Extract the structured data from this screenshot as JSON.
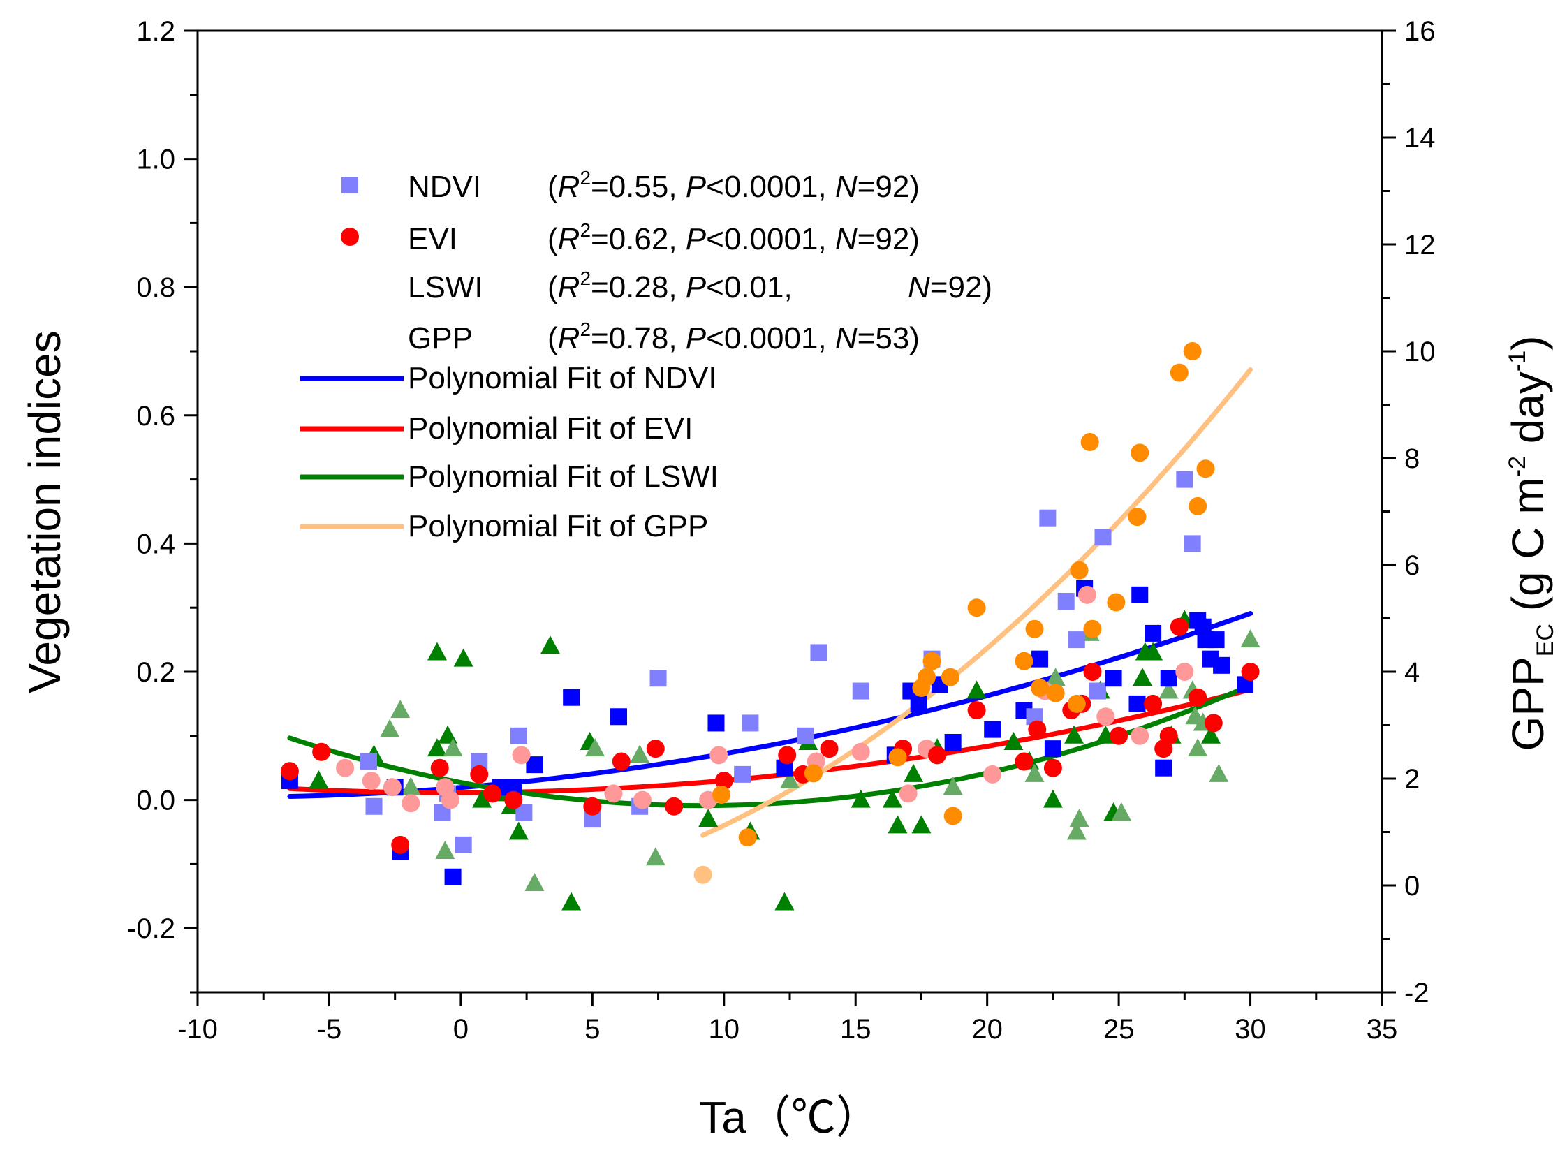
{
  "chart_data": {
    "type": "scatter",
    "title": "",
    "xlabel": "Ta（℃）",
    "ylabel_left": "Vegetation indices",
    "ylabel_right": {
      "main": "GPP",
      "sub": "EC",
      "units_open": " (g C m",
      "exp1": "-2",
      "units_mid": " day",
      "exp2": "-1",
      "units_close": ")"
    },
    "xlim": [
      -10,
      35
    ],
    "ylim_left": [
      -0.3,
      1.2
    ],
    "ylim_right": [
      -2,
      16
    ],
    "x_ticks": [
      "-10",
      "-5",
      "0",
      "5",
      "10",
      "15",
      "20",
      "25",
      "30",
      "35"
    ],
    "y_left_ticks": [
      "-0.2",
      "0.0",
      "0.2",
      "0.4",
      "0.6",
      "0.8",
      "1.0",
      "1.2"
    ],
    "y_right_ticks": [
      "-2",
      "0",
      "2",
      "4",
      "6",
      "8",
      "10",
      "12",
      "14",
      "16"
    ],
    "grid": false,
    "legend_position": "upper-left",
    "stats": [
      {
        "label": "NDVI",
        "r2": "=0.55, ",
        "p": "<0.0001, ",
        "n": "=92)"
      },
      {
        "label": "EVI",
        "r2": "=0.62, ",
        "p": "<0.0001, ",
        "n": "=92)"
      },
      {
        "label": "LSWI",
        "r2": "=0.28, ",
        "p": "<0.01, ",
        "n": "=92)"
      },
      {
        "label": "GPP",
        "r2": "=0.78, ",
        "p": "<0.0001, ",
        "n": "=53)"
      }
    ],
    "fit_lines": [
      {
        "name": "Polynomial Fit of NDVI",
        "color": "#0000ff",
        "axis": "left",
        "x_range": [
          -6.5,
          30
        ],
        "coef": [
          0.0195,
          0.00338,
          0.000189
        ]
      },
      {
        "name": "Polynomial Fit of EVI",
        "color": "#ff0000",
        "axis": "left",
        "x_range": [
          -6.5,
          30
        ],
        "coef": [
          0.0114,
          0.000143,
          0.000174
        ]
      },
      {
        "name": "Polynomial Fit of LSWI",
        "color": "#008000",
        "axis": "left",
        "x_range": [
          -6.5,
          30
        ],
        "coef": [
          0.0273,
          -0.00788,
          0.000431
        ]
      },
      {
        "name": "Polynomial Fit of GPP",
        "color": "#ffc080",
        "axis": "right",
        "x_range": [
          9.2,
          30
        ],
        "coef": [
          -0.3,
          0.0477,
          0.00947
        ]
      }
    ],
    "series": [
      {
        "name": "NDVI",
        "marker": "square",
        "color": "#0000ff",
        "fade_color": "#8080ff",
        "axis": "left",
        "points": [
          [
            -6.5,
            0.03,
            0
          ],
          [
            -3.5,
            0.06,
            1
          ],
          [
            -3.3,
            -0.01,
            1
          ],
          [
            -2.5,
            0.02,
            0
          ],
          [
            -2.3,
            -0.08,
            0
          ],
          [
            -0.7,
            -0.02,
            1
          ],
          [
            -0.5,
            0.01,
            1
          ],
          [
            -0.3,
            -0.12,
            0
          ],
          [
            0.1,
            -0.07,
            1
          ],
          [
            0.7,
            0.06,
            1
          ],
          [
            1.5,
            0.02,
            0
          ],
          [
            2.0,
            0.02,
            0
          ],
          [
            2.2,
            0.1,
            1
          ],
          [
            2.4,
            -0.02,
            1
          ],
          [
            2.8,
            0.055,
            0
          ],
          [
            4.2,
            0.16,
            0
          ],
          [
            5.0,
            -0.03,
            1
          ],
          [
            6.0,
            0.13,
            0
          ],
          [
            6.8,
            -0.01,
            1
          ],
          [
            7.5,
            0.19,
            1
          ],
          [
            9.7,
            0.12,
            0
          ],
          [
            10.7,
            0.04,
            1
          ],
          [
            11.0,
            0.12,
            1
          ],
          [
            12.3,
            0.05,
            0
          ],
          [
            13.1,
            0.1,
            1
          ],
          [
            13.6,
            0.23,
            1
          ],
          [
            15.2,
            0.17,
            1
          ],
          [
            16.5,
            0.07,
            0
          ],
          [
            17.1,
            0.17,
            0
          ],
          [
            17.4,
            0.15,
            0
          ],
          [
            17.9,
            0.22,
            1
          ],
          [
            18.2,
            0.18,
            0
          ],
          [
            18.7,
            0.09,
            0
          ],
          [
            20.2,
            0.11,
            0
          ],
          [
            21.4,
            0.14,
            0
          ],
          [
            21.8,
            0.13,
            1
          ],
          [
            22.0,
            0.22,
            0
          ],
          [
            22.3,
            0.44,
            1
          ],
          [
            22.5,
            0.08,
            0
          ],
          [
            23.0,
            0.31,
            1
          ],
          [
            23.4,
            0.25,
            1
          ],
          [
            23.7,
            0.33,
            0
          ],
          [
            24.2,
            0.17,
            1
          ],
          [
            24.4,
            0.41,
            1
          ],
          [
            24.8,
            0.19,
            0
          ],
          [
            25.7,
            0.15,
            0
          ],
          [
            25.8,
            0.32,
            0
          ],
          [
            26.3,
            0.26,
            0
          ],
          [
            26.7,
            0.05,
            0
          ],
          [
            26.9,
            0.19,
            0
          ],
          [
            27.5,
            0.5,
            1
          ],
          [
            27.8,
            0.4,
            1
          ],
          [
            28.0,
            0.28,
            0
          ],
          [
            28.2,
            0.27,
            0
          ],
          [
            28.3,
            0.25,
            0
          ],
          [
            28.5,
            0.22,
            0
          ],
          [
            28.7,
            0.25,
            0
          ],
          [
            28.9,
            0.21,
            0
          ],
          [
            29.8,
            0.18,
            0
          ]
        ]
      },
      {
        "name": "EVI",
        "marker": "circle",
        "color": "#ff0000",
        "fade_color": "#ff9999",
        "axis": "left",
        "points": [
          [
            -6.5,
            0.045,
            0
          ],
          [
            -5.3,
            0.075,
            0
          ],
          [
            -4.4,
            0.05,
            1
          ],
          [
            -3.4,
            0.03,
            1
          ],
          [
            -2.6,
            0.02,
            1
          ],
          [
            -2.3,
            -0.07,
            0
          ],
          [
            -1.9,
            -0.005,
            1
          ],
          [
            -0.8,
            0.05,
            0
          ],
          [
            -0.6,
            0.02,
            1
          ],
          [
            -0.4,
            0.0,
            1
          ],
          [
            0.7,
            0.04,
            0
          ],
          [
            1.2,
            0.01,
            0
          ],
          [
            2.0,
            0.0,
            0
          ],
          [
            2.3,
            0.07,
            1
          ],
          [
            5.0,
            -0.01,
            0
          ],
          [
            5.8,
            0.01,
            1
          ],
          [
            6.1,
            0.06,
            0
          ],
          [
            6.9,
            0.0,
            1
          ],
          [
            7.4,
            0.08,
            0
          ],
          [
            8.1,
            -0.01,
            0
          ],
          [
            9.4,
            0.0,
            1
          ],
          [
            9.8,
            0.07,
            1
          ],
          [
            10.0,
            0.03,
            0
          ],
          [
            12.4,
            0.07,
            0
          ],
          [
            13.0,
            0.04,
            0
          ],
          [
            13.5,
            0.06,
            1
          ],
          [
            14.0,
            0.08,
            0
          ],
          [
            15.2,
            0.075,
            1
          ],
          [
            16.8,
            0.08,
            0
          ],
          [
            17.0,
            0.01,
            1
          ],
          [
            17.7,
            0.08,
            1
          ],
          [
            18.1,
            0.07,
            0
          ],
          [
            19.6,
            0.14,
            0
          ],
          [
            20.2,
            0.04,
            1
          ],
          [
            21.4,
            0.06,
            0
          ],
          [
            21.9,
            0.11,
            0
          ],
          [
            22.2,
            0.17,
            1
          ],
          [
            22.5,
            0.05,
            0
          ],
          [
            23.2,
            0.14,
            0
          ],
          [
            23.6,
            0.15,
            0
          ],
          [
            23.8,
            0.32,
            1
          ],
          [
            24.0,
            0.2,
            0
          ],
          [
            24.5,
            0.13,
            1
          ],
          [
            25.0,
            0.1,
            0
          ],
          [
            25.8,
            0.1,
            1
          ],
          [
            26.3,
            0.15,
            0
          ],
          [
            26.7,
            0.08,
            0
          ],
          [
            26.9,
            0.1,
            0
          ],
          [
            27.3,
            0.27,
            0
          ],
          [
            27.5,
            0.2,
            1
          ],
          [
            28.0,
            0.16,
            0
          ],
          [
            28.6,
            0.12,
            0
          ],
          [
            30.0,
            0.2,
            0
          ]
        ]
      },
      {
        "name": "LSWI",
        "marker": "triangle",
        "color": "#008000",
        "fade_color": "#66aa66",
        "axis": "left",
        "points": [
          [
            -5.4,
            0.03,
            0
          ],
          [
            -3.3,
            0.07,
            0
          ],
          [
            -2.7,
            0.11,
            1
          ],
          [
            -2.3,
            0.14,
            1
          ],
          [
            -1.9,
            0.02,
            1
          ],
          [
            -0.9,
            0.08,
            0
          ],
          [
            -0.9,
            0.23,
            0
          ],
          [
            -0.6,
            -0.08,
            1
          ],
          [
            -0.5,
            0.1,
            0
          ],
          [
            -0.3,
            0.08,
            1
          ],
          [
            0.1,
            0.22,
            0
          ],
          [
            0.8,
            0.0,
            0
          ],
          [
            1.5,
            0.01,
            0
          ],
          [
            1.9,
            -0.01,
            0
          ],
          [
            2.2,
            -0.05,
            0
          ],
          [
            2.8,
            -0.13,
            1
          ],
          [
            3.4,
            0.24,
            0
          ],
          [
            4.2,
            -0.16,
            0
          ],
          [
            4.9,
            0.09,
            0
          ],
          [
            5.1,
            0.08,
            1
          ],
          [
            6.8,
            0.07,
            1
          ],
          [
            7.4,
            -0.09,
            1
          ],
          [
            9.4,
            -0.03,
            0
          ],
          [
            11.0,
            -0.05,
            0
          ],
          [
            12.3,
            -0.16,
            0
          ],
          [
            12.5,
            0.03,
            1
          ],
          [
            13.2,
            0.09,
            0
          ],
          [
            15.2,
            0.0,
            0
          ],
          [
            16.4,
            0.0,
            0
          ],
          [
            16.6,
            -0.04,
            0
          ],
          [
            17.2,
            0.04,
            0
          ],
          [
            17.5,
            -0.04,
            0
          ],
          [
            18.1,
            0.08,
            0
          ],
          [
            18.7,
            0.02,
            1
          ],
          [
            19.6,
            0.17,
            0
          ],
          [
            21.0,
            0.09,
            0
          ],
          [
            21.6,
            0.06,
            0
          ],
          [
            21.8,
            0.04,
            1
          ],
          [
            22.5,
            0.0,
            0
          ],
          [
            22.6,
            0.19,
            1
          ],
          [
            23.3,
            0.1,
            0
          ],
          [
            23.4,
            -0.05,
            1
          ],
          [
            23.5,
            -0.03,
            1
          ],
          [
            23.9,
            0.26,
            1
          ],
          [
            24.3,
            0.17,
            0
          ],
          [
            24.5,
            0.1,
            0
          ],
          [
            24.8,
            -0.02,
            0
          ],
          [
            25.1,
            -0.02,
            1
          ],
          [
            25.9,
            0.19,
            0
          ],
          [
            26.0,
            0.23,
            0
          ],
          [
            26.3,
            0.23,
            0
          ],
          [
            26.9,
            0.17,
            1
          ],
          [
            27.0,
            0.1,
            0
          ],
          [
            27.5,
            0.28,
            0
          ],
          [
            27.8,
            0.17,
            1
          ],
          [
            27.9,
            0.13,
            1
          ],
          [
            28.0,
            0.08,
            1
          ],
          [
            28.2,
            0.12,
            1
          ],
          [
            28.5,
            0.1,
            0
          ],
          [
            28.8,
            0.04,
            1
          ],
          [
            30.0,
            0.25,
            1
          ]
        ]
      },
      {
        "name": "GPP",
        "marker": "circle",
        "color": "#ff8c00",
        "fade_color": "#ffc080",
        "axis": "right",
        "points": [
          [
            9.2,
            0.2,
            1
          ],
          [
            9.9,
            1.7,
            0
          ],
          [
            10.9,
            0.9,
            0
          ],
          [
            13.4,
            2.1,
            0
          ],
          [
            16.6,
            2.4,
            0
          ],
          [
            17.5,
            3.7,
            0
          ],
          [
            17.7,
            3.9,
            0
          ],
          [
            17.9,
            4.2,
            0
          ],
          [
            18.6,
            3.9,
            0
          ],
          [
            18.7,
            1.3,
            0
          ],
          [
            19.6,
            5.2,
            0
          ],
          [
            21.4,
            4.2,
            0
          ],
          [
            21.8,
            4.8,
            0
          ],
          [
            22.0,
            3.7,
            0
          ],
          [
            22.6,
            3.6,
            0
          ],
          [
            23.4,
            3.4,
            0
          ],
          [
            23.5,
            5.9,
            0
          ],
          [
            23.9,
            8.3,
            0
          ],
          [
            24.0,
            4.8,
            0
          ],
          [
            24.9,
            5.3,
            0
          ],
          [
            25.7,
            6.9,
            0
          ],
          [
            25.8,
            8.1,
            0
          ],
          [
            27.3,
            9.6,
            0
          ],
          [
            27.8,
            10.0,
            0
          ],
          [
            28.0,
            7.1,
            0
          ],
          [
            28.3,
            7.8,
            0
          ]
        ]
      }
    ]
  }
}
